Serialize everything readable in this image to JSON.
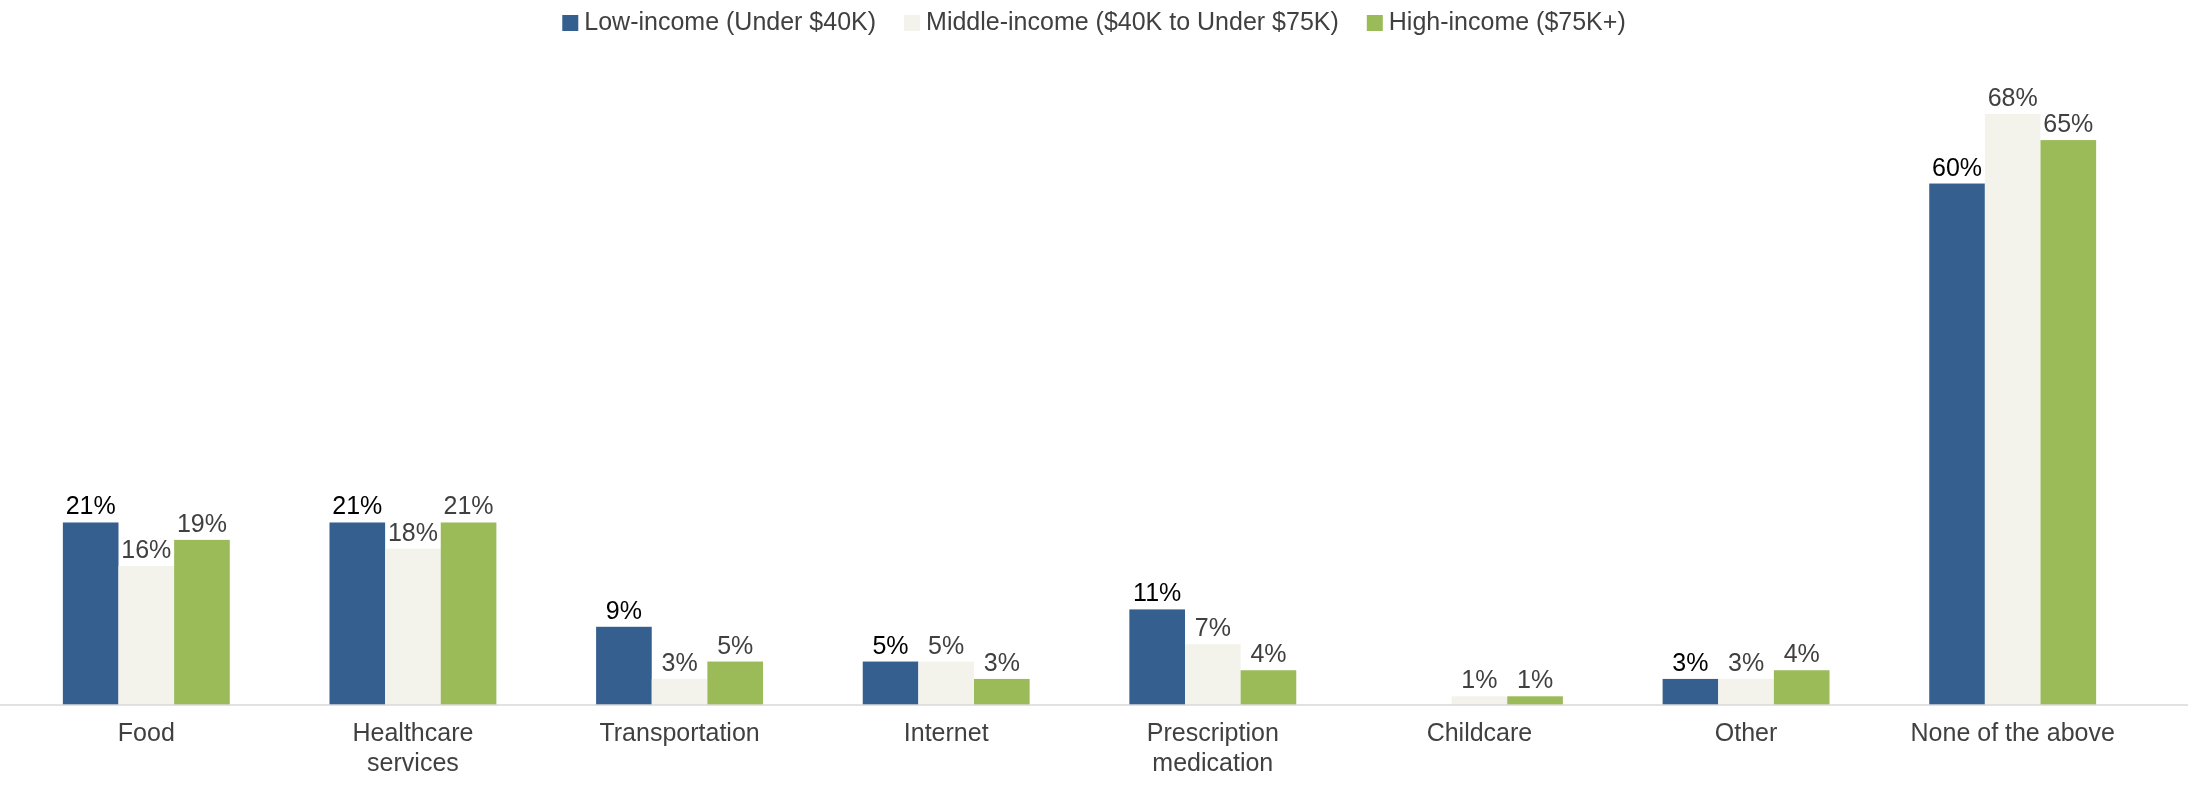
{
  "chart_data": {
    "type": "bar",
    "categories": [
      "Food",
      "Healthcare services",
      "Transportation",
      "Internet",
      "Prescription medication",
      "Childcare",
      "Other",
      "None of the above"
    ],
    "series": [
      {
        "name": "Low-income (Under $40K)",
        "color": "#355f8f",
        "values": [
          21,
          21,
          9,
          5,
          11,
          null,
          3,
          60
        ],
        "value_labels": [
          "21%",
          "21%",
          "9%",
          "5%",
          "11%",
          null,
          "3%",
          "60%"
        ]
      },
      {
        "name": "Middle-income ($40K to Under $75K)",
        "color": "#f3f3ec",
        "values": [
          16,
          18,
          3,
          5,
          7,
          1,
          3,
          68
        ],
        "value_labels": [
          "16%",
          "18%",
          "3%",
          "5%",
          "7%",
          "1%",
          "3%",
          "68%"
        ]
      },
      {
        "name": "High-income ($75K+)",
        "color": "#9bbb59",
        "values": [
          19,
          21,
          5,
          3,
          4,
          1,
          4,
          65
        ],
        "value_labels": [
          "19%",
          "21%",
          "5%",
          "3%",
          "4%",
          "1%",
          "4%",
          "65%"
        ]
      }
    ],
    "legend": "top"
  }
}
